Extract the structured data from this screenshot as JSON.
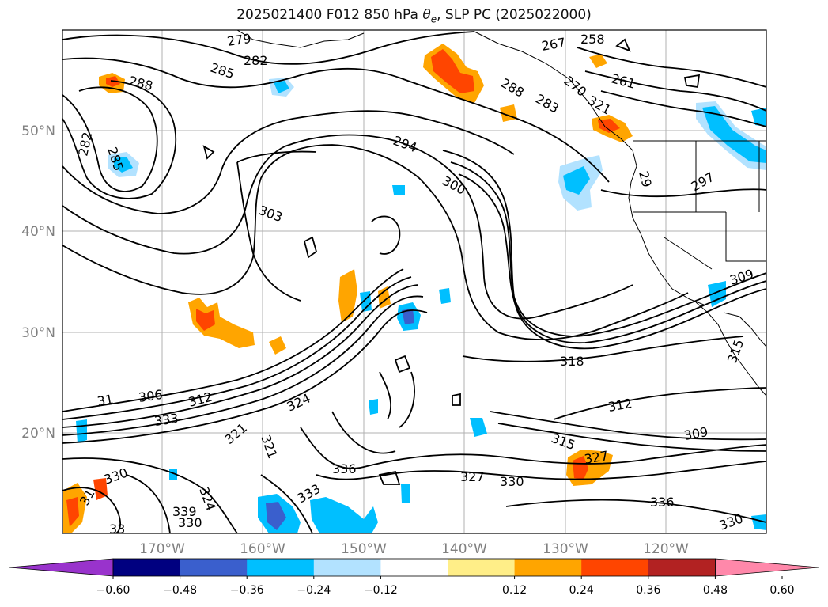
{
  "title": {
    "prefix": "2025021400 F012 850 hPa ",
    "theta": "θ",
    "theta_sub": "e",
    "suffix": ", SLP PC (2025022000)"
  },
  "latitude_labels": [
    "50°N",
    "40°N",
    "30°N",
    "20°N"
  ],
  "longitude_labels": [
    "170°W",
    "160°W",
    "150°W",
    "140°W",
    "130°W",
    "120°W"
  ],
  "contour_labels": [
    "279",
    "282",
    "285",
    "288",
    "282",
    "285",
    "258",
    "267",
    "261",
    "270",
    "283",
    "288",
    "294",
    "300",
    "303",
    "297",
    "29",
    "309",
    "318",
    "312",
    "315",
    "309",
    "31",
    "306",
    "312",
    "333",
    "324",
    "321",
    "321",
    "336",
    "327",
    "330",
    "330",
    "333",
    "324",
    "336",
    "330",
    "330",
    "327",
    "31",
    "33",
    "321",
    "315",
    "339"
  ],
  "colorbar": {
    "colors": [
      "#9933cc",
      "#000080",
      "#3a5fcd",
      "#00bfff",
      "#b2e2ff",
      "#ffffff",
      "#ffee88",
      "#ffa500",
      "#ff4500",
      "#b22222",
      "#ff88aa"
    ],
    "tick_labels": [
      "−0.60",
      "−0.48",
      "−0.36",
      "−0.24",
      "−0.12",
      "0.12",
      "0.24",
      "0.36",
      "0.48",
      "0.60"
    ]
  }
}
